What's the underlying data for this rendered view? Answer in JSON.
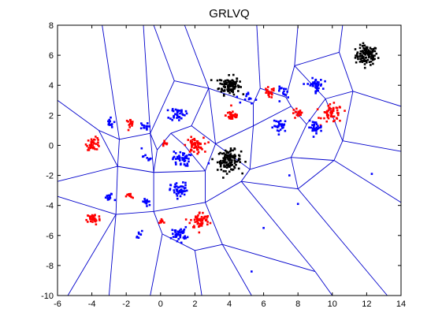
{
  "chart_data": {
    "type": "scatter",
    "title": "GRLVQ",
    "xlabel": "",
    "ylabel": "",
    "xlim": [
      -6,
      14
    ],
    "ylim": [
      -10,
      8
    ],
    "xticks": [
      -6,
      -4,
      -2,
      0,
      2,
      4,
      6,
      8,
      10,
      12,
      14
    ],
    "yticks": [
      -10,
      -8,
      -6,
      -4,
      -2,
      0,
      2,
      4,
      6,
      8
    ],
    "xtick_labels": [
      "-6",
      "-4",
      "-2",
      "0",
      "2",
      "4",
      "6",
      "8",
      "10",
      "12",
      "14"
    ],
    "ytick_labels": [
      "-10",
      "-8",
      "-6",
      "-4",
      "-2",
      "0",
      "2",
      "4",
      "6",
      "8"
    ],
    "grid": false,
    "legend": "none",
    "marker": "dot",
    "colors": {
      "red": "#ff0000",
      "blue": "#0000ff",
      "black": "#000000",
      "boundary": "#0000cc"
    },
    "clusters": [
      {
        "color": "black",
        "center": [
          12.0,
          6.0
        ],
        "spread": 0.32,
        "count": 110
      },
      {
        "color": "black",
        "center": [
          4.0,
          4.0
        ],
        "spread": 0.3,
        "count": 110
      },
      {
        "color": "black",
        "center": [
          4.0,
          -1.0
        ],
        "spread": 0.34,
        "count": 120
      },
      {
        "color": "red",
        "center": [
          4.2,
          2.0
        ],
        "spread": 0.2,
        "count": 35
      },
      {
        "color": "red",
        "center": [
          6.3,
          3.5
        ],
        "spread": 0.18,
        "count": 20
      },
      {
        "color": "red",
        "center": [
          8.0,
          2.1
        ],
        "spread": 0.18,
        "count": 18
      },
      {
        "color": "red",
        "center": [
          10.0,
          2.1
        ],
        "spread": 0.3,
        "count": 55
      },
      {
        "color": "red",
        "center": [
          -3.9,
          0.1
        ],
        "spread": 0.2,
        "count": 40
      },
      {
        "color": "red",
        "center": [
          -1.8,
          1.5
        ],
        "spread": 0.12,
        "count": 15
      },
      {
        "color": "red",
        "center": [
          2.0,
          0.0
        ],
        "spread": 0.25,
        "count": 55
      },
      {
        "color": "red",
        "center": [
          0.2,
          0.1
        ],
        "spread": 0.12,
        "count": 8
      },
      {
        "color": "red",
        "center": [
          -1.8,
          -3.4
        ],
        "spread": 0.1,
        "count": 12
      },
      {
        "color": "red",
        "center": [
          -3.9,
          -4.9
        ],
        "spread": 0.2,
        "count": 40
      },
      {
        "color": "red",
        "center": [
          2.3,
          -5.0
        ],
        "spread": 0.28,
        "count": 60
      },
      {
        "color": "red",
        "center": [
          0.1,
          -5.0
        ],
        "spread": 0.1,
        "count": 8
      },
      {
        "color": "blue",
        "center": [
          1.0,
          2.1
        ],
        "spread": 0.22,
        "count": 40
      },
      {
        "color": "blue",
        "center": [
          -3.0,
          1.5
        ],
        "spread": 0.15,
        "count": 15
      },
      {
        "color": "blue",
        "center": [
          -1.0,
          1.2
        ],
        "spread": 0.15,
        "count": 12
      },
      {
        "color": "blue",
        "center": [
          1.2,
          -0.9
        ],
        "spread": 0.25,
        "count": 45
      },
      {
        "color": "blue",
        "center": [
          -0.8,
          -0.8
        ],
        "spread": 0.12,
        "count": 8
      },
      {
        "color": "blue",
        "center": [
          1.1,
          -3.0
        ],
        "spread": 0.25,
        "count": 50
      },
      {
        "color": "blue",
        "center": [
          -3.0,
          -3.5
        ],
        "spread": 0.15,
        "count": 15
      },
      {
        "color": "blue",
        "center": [
          -0.8,
          -3.8
        ],
        "spread": 0.15,
        "count": 15
      },
      {
        "color": "blue",
        "center": [
          1.1,
          -5.9
        ],
        "spread": 0.22,
        "count": 40
      },
      {
        "color": "blue",
        "center": [
          -1.2,
          -5.9
        ],
        "spread": 0.12,
        "count": 8
      },
      {
        "color": "blue",
        "center": [
          9.0,
          4.0
        ],
        "spread": 0.22,
        "count": 40
      },
      {
        "color": "blue",
        "center": [
          9.0,
          1.2
        ],
        "spread": 0.2,
        "count": 30
      },
      {
        "color": "blue",
        "center": [
          7.0,
          1.3
        ],
        "spread": 0.22,
        "count": 30
      },
      {
        "color": "blue",
        "center": [
          7.2,
          3.5
        ],
        "spread": 0.2,
        "count": 15
      },
      {
        "color": "blue",
        "center": [
          5.2,
          3.2
        ],
        "spread": 0.2,
        "count": 12
      }
    ],
    "outlier_points": [
      {
        "color": "blue",
        "x": 12.3,
        "y": -1.9
      },
      {
        "color": "blue",
        "x": 8.0,
        "y": -3.9
      },
      {
        "color": "blue",
        "x": 6.0,
        "y": -5.5
      },
      {
        "color": "blue",
        "x": 5.3,
        "y": -8.4
      },
      {
        "color": "blue",
        "x": 7.5,
        "y": -2.0
      },
      {
        "color": "blue",
        "x": 2.8,
        "y": -1.2
      },
      {
        "color": "blue",
        "x": -1.1,
        "y": -0.2
      }
    ],
    "boundary_segments": [
      [
        [
          -3.4,
          8.0
        ],
        [
          -2.4,
          0.4
        ]
      ],
      [
        [
          -6.0,
          3.0
        ],
        [
          -3.6,
          1.0
        ]
      ],
      [
        [
          -3.6,
          1.0
        ],
        [
          -2.4,
          0.4
        ]
      ],
      [
        [
          -2.4,
          0.4
        ],
        [
          -0.6,
          0.8
        ]
      ],
      [
        [
          -3.6,
          1.0
        ],
        [
          -2.5,
          -1.4
        ]
      ],
      [
        [
          -2.4,
          0.4
        ],
        [
          -2.5,
          -1.4
        ]
      ],
      [
        [
          -6.0,
          -2.4
        ],
        [
          -2.5,
          -1.4
        ]
      ],
      [
        [
          -2.5,
          -1.4
        ],
        [
          -0.4,
          -1.8
        ]
      ],
      [
        [
          -0.6,
          0.8
        ],
        [
          -0.4,
          -1.8
        ]
      ],
      [
        [
          -0.6,
          0.8
        ],
        [
          -1.0,
          8.0
        ]
      ],
      [
        [
          -0.6,
          0.8
        ],
        [
          0.8,
          4.3
        ]
      ],
      [
        [
          0.8,
          4.3
        ],
        [
          -0.4,
          8.0
        ]
      ],
      [
        [
          0.8,
          4.3
        ],
        [
          2.8,
          3.8
        ]
      ],
      [
        [
          2.8,
          3.8
        ],
        [
          1.4,
          8.0
        ]
      ],
      [
        [
          -0.6,
          0.8
        ],
        [
          -0.2,
          -0.3
        ]
      ],
      [
        [
          -0.2,
          -0.3
        ],
        [
          -0.4,
          -1.8
        ]
      ],
      [
        [
          -0.2,
          -0.3
        ],
        [
          0.6,
          0.8
        ]
      ],
      [
        [
          0.6,
          0.8
        ],
        [
          1.8,
          1.3
        ]
      ],
      [
        [
          1.8,
          1.3
        ],
        [
          2.8,
          3.8
        ]
      ],
      [
        [
          1.8,
          1.3
        ],
        [
          3.2,
          0.1
        ]
      ],
      [
        [
          2.8,
          3.8
        ],
        [
          3.2,
          0.1
        ]
      ],
      [
        [
          0.6,
          0.8
        ],
        [
          1.4,
          0.0
        ]
      ],
      [
        [
          1.4,
          0.0
        ],
        [
          2.6,
          -1.7
        ]
      ],
      [
        [
          3.2,
          0.1
        ],
        [
          2.6,
          -1.7
        ]
      ],
      [
        [
          -0.4,
          -1.8
        ],
        [
          2.6,
          -1.7
        ]
      ],
      [
        [
          -2.5,
          -1.4
        ],
        [
          -2.6,
          -4.6
        ]
      ],
      [
        [
          -6.0,
          -3.4
        ],
        [
          -2.6,
          -4.6
        ]
      ],
      [
        [
          -2.6,
          -4.6
        ],
        [
          -5.4,
          -10.0
        ]
      ],
      [
        [
          -2.6,
          -4.6
        ],
        [
          -0.4,
          -4.4
        ]
      ],
      [
        [
          -0.4,
          -1.8
        ],
        [
          -0.4,
          -4.4
        ]
      ],
      [
        [
          -0.4,
          -4.4
        ],
        [
          0.1,
          -5.9
        ]
      ],
      [
        [
          -2.6,
          -4.6
        ],
        [
          -3.0,
          -10.0
        ]
      ],
      [
        [
          0.1,
          -5.9
        ],
        [
          -0.6,
          -10.0
        ]
      ],
      [
        [
          0.1,
          -5.9
        ],
        [
          2.0,
          -7.0
        ]
      ],
      [
        [
          2.0,
          -7.0
        ],
        [
          2.4,
          -10.0
        ]
      ],
      [
        [
          -0.4,
          -4.4
        ],
        [
          2.6,
          -3.8
        ]
      ],
      [
        [
          2.6,
          -1.7
        ],
        [
          2.6,
          -3.8
        ]
      ],
      [
        [
          2.6,
          -3.8
        ],
        [
          3.6,
          -6.6
        ]
      ],
      [
        [
          2.0,
          -7.0
        ],
        [
          3.6,
          -6.6
        ]
      ],
      [
        [
          3.6,
          -6.6
        ],
        [
          5.3,
          -10.0
        ]
      ],
      [
        [
          3.6,
          -6.6
        ],
        [
          9.0,
          -8.4
        ]
      ],
      [
        [
          9.0,
          -8.4
        ],
        [
          10.0,
          -10.0
        ]
      ],
      [
        [
          2.6,
          -3.8
        ],
        [
          4.7,
          -2.4
        ]
      ],
      [
        [
          4.7,
          -2.4
        ],
        [
          5.2,
          -1.6
        ]
      ],
      [
        [
          3.2,
          0.1
        ],
        [
          5.2,
          -1.6
        ]
      ],
      [
        [
          4.7,
          -2.4
        ],
        [
          9.0,
          -8.4
        ]
      ],
      [
        [
          5.2,
          -1.6
        ],
        [
          7.6,
          -0.8
        ]
      ],
      [
        [
          7.6,
          -0.8
        ],
        [
          8.0,
          -2.9
        ]
      ],
      [
        [
          4.7,
          -2.4
        ],
        [
          8.0,
          -2.9
        ]
      ],
      [
        [
          8.0,
          -2.9
        ],
        [
          13.2,
          -10.0
        ]
      ],
      [
        [
          7.6,
          -0.8
        ],
        [
          10.1,
          -1.0
        ]
      ],
      [
        [
          10.1,
          -1.0
        ],
        [
          8.0,
          -2.9
        ]
      ],
      [
        [
          10.1,
          -1.0
        ],
        [
          14.0,
          -3.8
        ]
      ],
      [
        [
          10.1,
          -1.0
        ],
        [
          10.6,
          0.3
        ]
      ],
      [
        [
          10.6,
          0.3
        ],
        [
          14.0,
          -0.4
        ]
      ],
      [
        [
          5.2,
          -1.6
        ],
        [
          5.4,
          1.3
        ]
      ],
      [
        [
          5.4,
          1.3
        ],
        [
          3.2,
          0.1
        ]
      ],
      [
        [
          5.4,
          1.3
        ],
        [
          5.4,
          2.8
        ]
      ],
      [
        [
          5.4,
          2.8
        ],
        [
          2.8,
          3.8
        ]
      ],
      [
        [
          5.4,
          2.8
        ],
        [
          5.8,
          3.8
        ]
      ],
      [
        [
          5.8,
          3.8
        ],
        [
          5.6,
          8.0
        ]
      ],
      [
        [
          5.8,
          3.8
        ],
        [
          7.3,
          3.2
        ]
      ],
      [
        [
          7.3,
          3.2
        ],
        [
          7.8,
          5.3
        ]
      ],
      [
        [
          7.8,
          5.3
        ],
        [
          8.0,
          8.0
        ]
      ],
      [
        [
          7.3,
          3.2
        ],
        [
          7.6,
          2.6
        ]
      ],
      [
        [
          7.6,
          2.6
        ],
        [
          5.4,
          1.3
        ]
      ],
      [
        [
          7.6,
          2.6
        ],
        [
          8.5,
          1.4
        ]
      ],
      [
        [
          8.5,
          1.4
        ],
        [
          7.6,
          -0.8
        ]
      ],
      [
        [
          8.5,
          1.4
        ],
        [
          9.6,
          3.1
        ]
      ],
      [
        [
          9.6,
          3.1
        ],
        [
          10.6,
          0.3
        ]
      ],
      [
        [
          9.6,
          3.1
        ],
        [
          7.8,
          5.3
        ]
      ],
      [
        [
          9.6,
          3.1
        ],
        [
          11.2,
          3.6
        ]
      ],
      [
        [
          11.2,
          3.6
        ],
        [
          14.0,
          2.6
        ]
      ],
      [
        [
          11.2,
          3.6
        ],
        [
          10.4,
          6.2
        ]
      ],
      [
        [
          10.4,
          6.2
        ],
        [
          7.8,
          5.3
        ]
      ],
      [
        [
          10.4,
          6.2
        ],
        [
          10.6,
          8.0
        ]
      ],
      [
        [
          11.2,
          3.6
        ],
        [
          10.6,
          0.3
        ]
      ]
    ]
  }
}
